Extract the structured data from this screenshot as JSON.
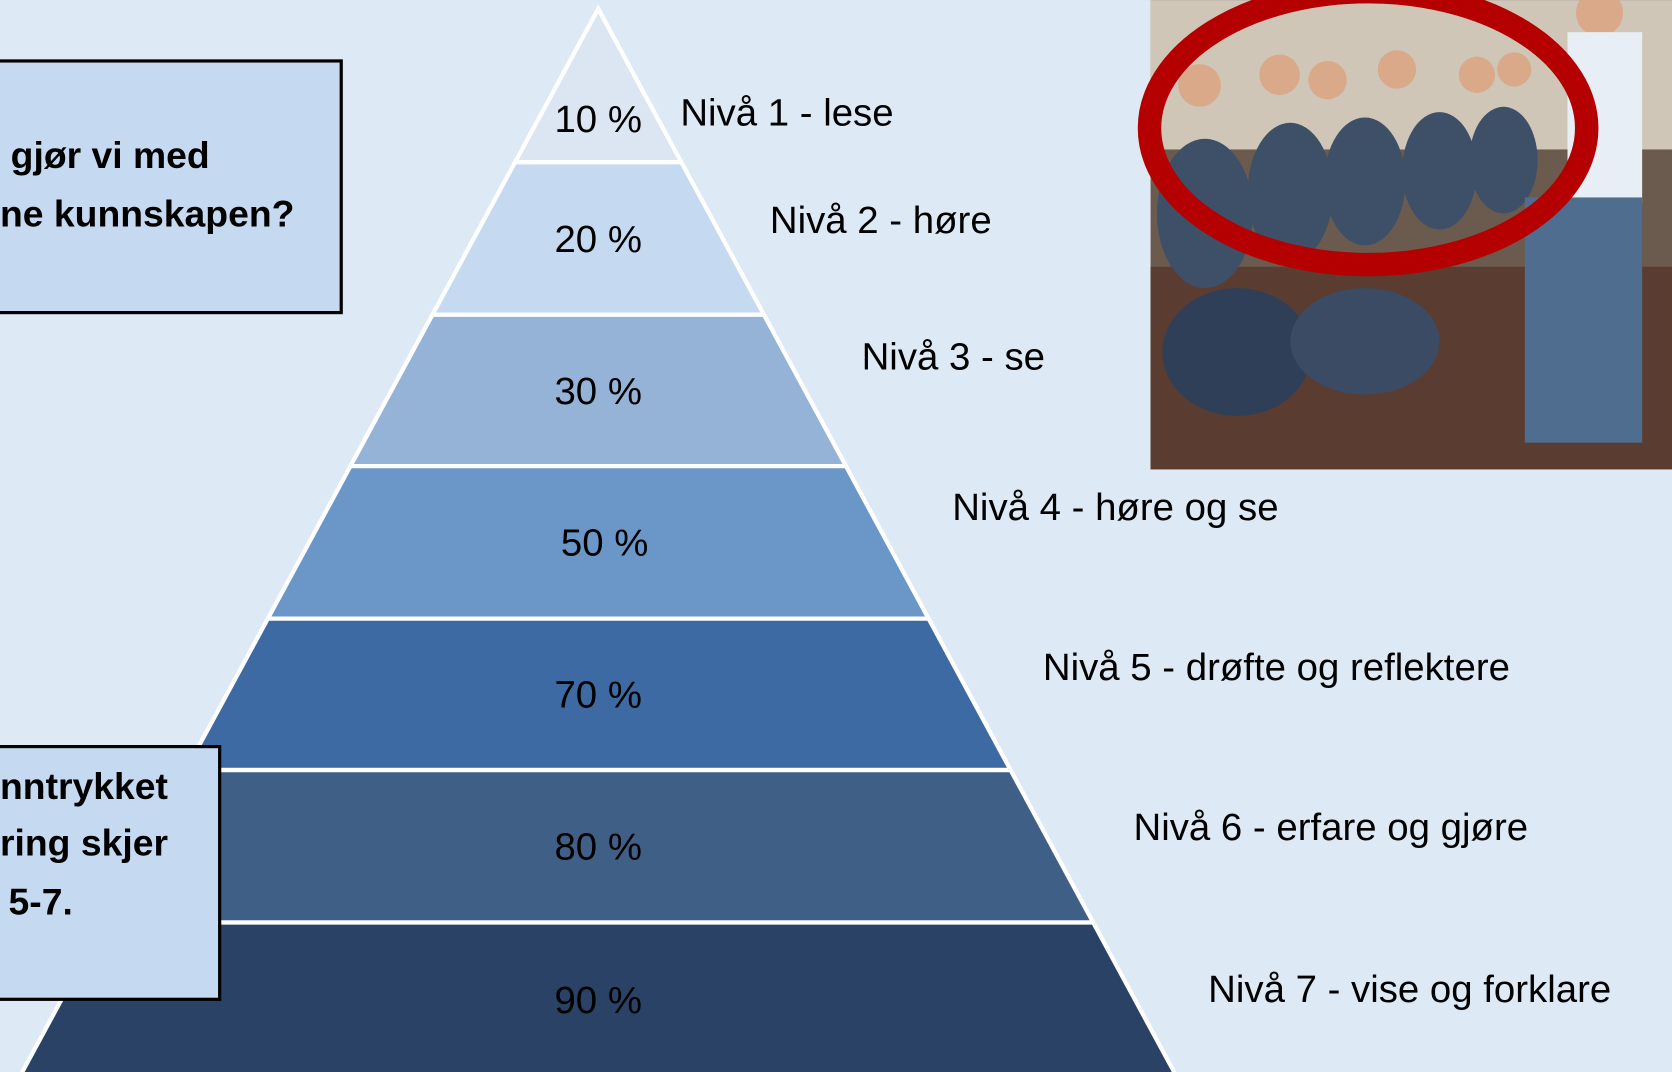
{
  "boxes": [
    {
      "lines": [
        "gjør vi med",
        "ne kunnskapen?"
      ]
    },
    {
      "lines": [
        "nntrykket",
        "ring skjer",
        "5-7."
      ]
    }
  ],
  "pyramid": {
    "levels": [
      {
        "percent": "10 %",
        "label": "Nivå 1 - lese"
      },
      {
        "percent": "20 %",
        "label": "Nivå 2 - høre"
      },
      {
        "percent": "30 %",
        "label": "Nivå 3 - se"
      },
      {
        "percent": "50 %",
        "label": "Nivå 4 - høre og se"
      },
      {
        "percent": "70 %",
        "label": "Nivå 5 - drøfte og reflektere"
      },
      {
        "percent": "80 %",
        "label": "Nivå 6 - erfare og gjøre"
      },
      {
        "percent": "90 %",
        "label": "Nivå 7 - vise og forklare"
      }
    ]
  }
}
